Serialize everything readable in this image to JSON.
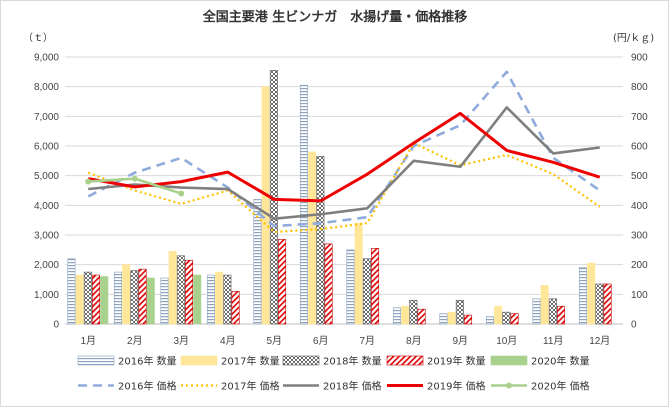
{
  "chart_data": {
    "type": "bar",
    "title": "全国主要港 生ビンナガ　水揚げ量・価格推移",
    "ylabel_left": "（ｔ）",
    "ylabel_right": "(円/ｋｇ)",
    "categories": [
      "1月",
      "2月",
      "3月",
      "4月",
      "5月",
      "6月",
      "7月",
      "8月",
      "9月",
      "10月",
      "11月",
      "12月"
    ],
    "ylim_left": [
      0,
      9000
    ],
    "ylim_right": [
      0,
      900
    ],
    "yticks_left": [
      "0",
      "1,000",
      "2,000",
      "3,000",
      "4,000",
      "5,000",
      "6,000",
      "7,000",
      "8,000",
      "9,000"
    ],
    "yticks_right": [
      "0",
      "100",
      "200",
      "300",
      "400",
      "500",
      "600",
      "700",
      "800",
      "900"
    ],
    "grid": true,
    "legend_position": "bottom",
    "bar_series": [
      {
        "name": "2016年 数量",
        "values": [
          2200,
          1750,
          1550,
          1650,
          4200,
          8050,
          2500,
          550,
          350,
          250,
          850,
          1900
        ]
      },
      {
        "name": "2017年 数量",
        "values": [
          1650,
          2000,
          2450,
          1750,
          8000,
          5800,
          3400,
          600,
          400,
          600,
          1300,
          2050
        ]
      },
      {
        "name": "2018年 数量",
        "values": [
          1750,
          1800,
          2300,
          1650,
          8550,
          5650,
          2200,
          800,
          800,
          400,
          850,
          1350
        ]
      },
      {
        "name": "2019年 数量",
        "values": [
          1650,
          1850,
          2150,
          1100,
          2850,
          2700,
          2550,
          500,
          300,
          350,
          600,
          1350
        ]
      },
      {
        "name": "2020年 数量",
        "values": [
          1600,
          1550,
          1650,
          null,
          null,
          null,
          null,
          null,
          null,
          null,
          null,
          null
        ]
      }
    ],
    "line_series": [
      {
        "name": "2016年 価格",
        "values": [
          430,
          510,
          560,
          460,
          330,
          340,
          360,
          600,
          670,
          850,
          560,
          450
        ]
      },
      {
        "name": "2017年 価格",
        "values": [
          510,
          450,
          405,
          450,
          310,
          320,
          340,
          610,
          535,
          570,
          505,
          395
        ]
      },
      {
        "name": "2018年 価格",
        "values": [
          455,
          470,
          460,
          455,
          355,
          370,
          390,
          550,
          530,
          730,
          575,
          595
        ]
      },
      {
        "name": "2019年 価格",
        "values": [
          490,
          462,
          480,
          512,
          420,
          415,
          505,
          610,
          710,
          585,
          545,
          495
        ]
      },
      {
        "name": "2020年 価格",
        "values": [
          480,
          490,
          440,
          null,
          null,
          null,
          null,
          null,
          null,
          null,
          null,
          null
        ]
      }
    ],
    "colors": {
      "bar2016": "#9fb3c8",
      "bar2017": "#ffe699",
      "bar2018": "#7f7f7f",
      "bar2019": "#e00000",
      "bar2020": "#a9d18e",
      "line2016": "#8faadc",
      "line2017": "#ffc000",
      "line2018": "#7f7f7f",
      "line2019": "#ee0000",
      "line2020": "#a9d18e"
    }
  }
}
